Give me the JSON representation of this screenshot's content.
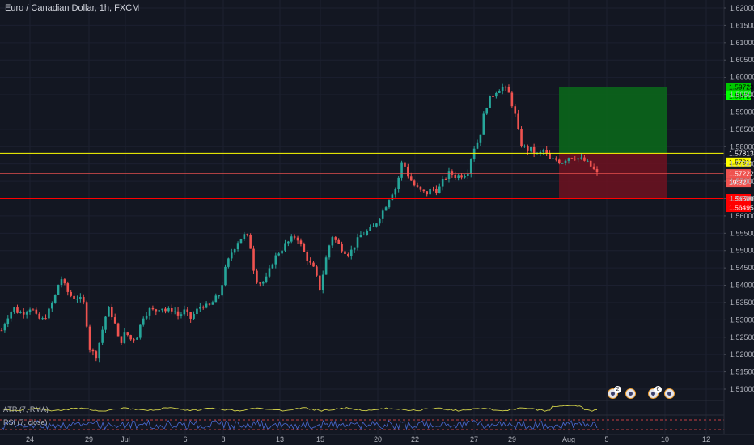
{
  "header": {
    "title": "Euro / Canadian Dollar, 1h, FXCM"
  },
  "indicators": {
    "atr_label": "ATR (7, RMA)",
    "rsi_label": "RSI (7, close)"
  },
  "events": [
    {
      "name": "event-icon-1",
      "badge": "2"
    },
    {
      "name": "event-icon-2",
      "badge": ""
    },
    {
      "name": "event-icon-3",
      "badge": "6"
    },
    {
      "name": "event-icon-4",
      "badge": ""
    }
  ],
  "colors": {
    "background": "#131722",
    "up": "#26a69a",
    "down": "#ef5350",
    "target": "#00ff00",
    "entry": "#ffff00",
    "stop": "#ff0000",
    "atr_line": "#d4d44a",
    "rsi_line": "#4a6bd4"
  },
  "chart_data": {
    "type": "candlestick",
    "symbol": "Euro / Canadian Dollar",
    "interval": "1h",
    "source": "FXCM",
    "y_ticks": [
      "1.62000",
      "1.61500",
      "1.61000",
      "1.60500",
      "1.60000",
      "1.59500",
      "1.59000",
      "1.58500",
      "1.58000",
      "1.57500",
      "1.57000",
      "1.56500",
      "1.56000",
      "1.55500",
      "1.55000",
      "1.54500",
      "1.54000",
      "1.53500",
      "1.53000",
      "1.52500",
      "1.52000",
      "1.51500",
      "1.51000"
    ],
    "x_ticks": [
      "24",
      "29",
      "Jul",
      "6",
      "8",
      "13",
      "15",
      "20",
      "22",
      "27",
      "29",
      "Aug",
      "5",
      "10",
      "12"
    ],
    "ylim": [
      1.505,
      1.6215
    ],
    "price_levels": [
      {
        "name": "target",
        "labels": [
          "1.59723",
          "1.59723"
        ],
        "value": 1.59723,
        "color": "#00ff00"
      },
      {
        "name": "entry",
        "labels": [
          "1.57813",
          "1.57812"
        ],
        "value": 1.57812,
        "color": "#ffff00"
      },
      {
        "name": "current",
        "labels": [
          "1.57222",
          "19:32"
        ],
        "value": 1.57222,
        "color": "#ef5350"
      },
      {
        "name": "stop",
        "labels": [
          "1.56500",
          "1.56495"
        ],
        "value": 1.565,
        "color": "#ff0000"
      }
    ],
    "position": {
      "type": "long",
      "entry": 1.57812,
      "target": 1.59723,
      "stop": 1.565
    },
    "price_path": [
      [
        0,
        1.527
      ],
      [
        1,
        1.531
      ],
      [
        2,
        1.5335
      ],
      [
        3,
        1.532
      ],
      [
        4,
        1.5325
      ],
      [
        5,
        1.5338
      ],
      [
        6,
        1.5305
      ],
      [
        7,
        1.53
      ],
      [
        8,
        1.5325
      ],
      [
        9,
        1.5365
      ],
      [
        10,
        1.5425
      ],
      [
        11,
        1.5385
      ],
      [
        12,
        1.5365
      ],
      [
        13,
        1.5365
      ],
      [
        14,
        1.5345
      ],
      [
        15,
        1.5215
      ],
      [
        16,
        1.5195
      ],
      [
        17,
        1.5265
      ],
      [
        18,
        1.5335
      ],
      [
        19,
        1.5305
      ],
      [
        20,
        1.523
      ],
      [
        21,
        1.5265
      ],
      [
        22,
        1.5242
      ],
      [
        23,
        1.5255
      ],
      [
        24,
        1.531
      ],
      [
        25,
        1.533
      ],
      [
        26,
        1.5325
      ],
      [
        27,
        1.534
      ],
      [
        28,
        1.5323
      ],
      [
        29,
        1.5333
      ],
      [
        30,
        1.5312
      ],
      [
        31,
        1.5325
      ],
      [
        32,
        1.5303
      ],
      [
        33,
        1.5325
      ],
      [
        34,
        1.5345
      ],
      [
        35,
        1.5335
      ],
      [
        36,
        1.5355
      ],
      [
        37,
        1.5375
      ],
      [
        38,
        1.545
      ],
      [
        39,
        1.5495
      ],
      [
        40,
        1.5525
      ],
      [
        41,
        1.5545
      ],
      [
        42,
        1.5535
      ],
      [
        43,
        1.542
      ],
      [
        44,
        1.5405
      ],
      [
        45,
        1.542
      ],
      [
        46,
        1.547
      ],
      [
        47,
        1.5495
      ],
      [
        48,
        1.5515
      ],
      [
        49,
        1.553
      ],
      [
        50,
        1.5545
      ],
      [
        51,
        1.5505
      ],
      [
        52,
        1.547
      ],
      [
        53,
        1.5445
      ],
      [
        54,
        1.539
      ],
      [
        55,
        1.5475
      ],
      [
        56,
        1.5545
      ],
      [
        57,
        1.552
      ],
      [
        58,
        1.5502
      ],
      [
        59,
        1.549
      ],
      [
        60,
        1.552
      ],
      [
        61,
        1.5545
      ],
      [
        62,
        1.5555
      ],
      [
        63,
        1.5565
      ],
      [
        64,
        1.5595
      ],
      [
        65,
        1.5625
      ],
      [
        66,
        1.5663
      ],
      [
        67,
        1.5685
      ],
      [
        68,
        1.5762
      ],
      [
        69,
        1.5715
      ],
      [
        70,
        1.5688
      ],
      [
        71,
        1.5672
      ],
      [
        72,
        1.5664
      ],
      [
        73,
        1.568
      ],
      [
        74,
        1.5672
      ],
      [
        75,
        1.5705
      ],
      [
        76,
        1.5725
      ],
      [
        77,
        1.5715
      ],
      [
        78,
        1.5718
      ],
      [
        79,
        1.5725
      ],
      [
        80,
        1.5795
      ],
      [
        81,
        1.582
      ],
      [
        82,
        1.591
      ],
      [
        83,
        1.5942
      ],
      [
        84,
        1.5964
      ],
      [
        85,
        1.5972
      ],
      [
        86,
        1.5955
      ],
      [
        87,
        1.59
      ],
      [
        88,
        1.581
      ],
      [
        89,
        1.5792
      ],
      [
        90,
        1.579
      ],
      [
        91,
        1.5775
      ],
      [
        92,
        1.5791
      ],
      [
        93,
        1.576
      ],
      [
        94,
        1.5763
      ],
      [
        95,
        1.5755
      ],
      [
        96,
        1.577
      ],
      [
        97,
        1.5772
      ],
      [
        98,
        1.5765
      ],
      [
        99,
        1.5758
      ],
      [
        100,
        1.5742
      ],
      [
        101,
        1.5722
      ]
    ]
  }
}
